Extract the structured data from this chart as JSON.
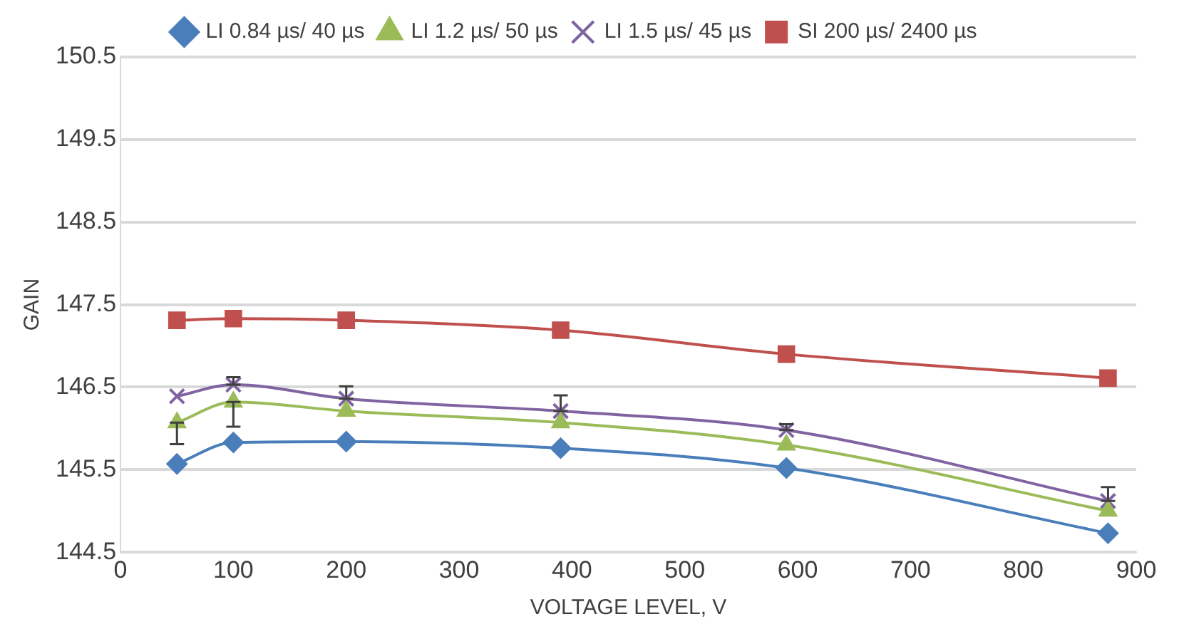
{
  "chart_data": {
    "type": "line",
    "xlabel": "VOLTAGE LEVEL, V",
    "ylabel": "GAIN",
    "xlim": [
      0,
      900
    ],
    "xticks": [
      0,
      100,
      200,
      300,
      400,
      500,
      600,
      700,
      800,
      900
    ],
    "ylim": [
      144.5,
      150.5
    ],
    "yticks": [
      144.5,
      145.5,
      146.5,
      147.5,
      148.5,
      149.5,
      150.5
    ],
    "grid": "y",
    "legend": "top",
    "line_style": "solid",
    "x": [
      50,
      100,
      200,
      390,
      590,
      875
    ],
    "series": [
      {
        "name": "LI 0.84 µs/ 40 µs",
        "color": "#4a7ebb",
        "marker": "diamond",
        "values": [
          145.57,
          145.83,
          145.84,
          145.76,
          145.52,
          144.73
        ]
      },
      {
        "name": "LI 1.2 µs/ 50 µs",
        "color": "#9bbb59",
        "marker": "triangle",
        "values": [
          146.07,
          146.32,
          146.21,
          146.07,
          145.8,
          145.0
        ],
        "errors": [
          [
            145.81,
            146.07
          ],
          [
            146.02,
            146.32
          ],
          null,
          null,
          null,
          null
        ]
      },
      {
        "name": "LI 1.5 µs/ 45 µs",
        "color": "#8064a2",
        "marker": "cross",
        "values": [
          146.39,
          146.53,
          146.36,
          146.21,
          145.98,
          145.12
        ],
        "errors": [
          null,
          [
            146.53,
            146.62
          ],
          [
            146.36,
            146.51
          ],
          [
            146.21,
            146.4
          ],
          [
            145.98,
            146.05
          ],
          [
            145.12,
            145.29
          ]
        ]
      },
      {
        "name": "SI 200 µs/ 2400 µs",
        "color": "#c0504d",
        "marker": "square",
        "values": [
          147.31,
          147.33,
          147.31,
          147.19,
          146.9,
          146.61
        ]
      }
    ]
  }
}
